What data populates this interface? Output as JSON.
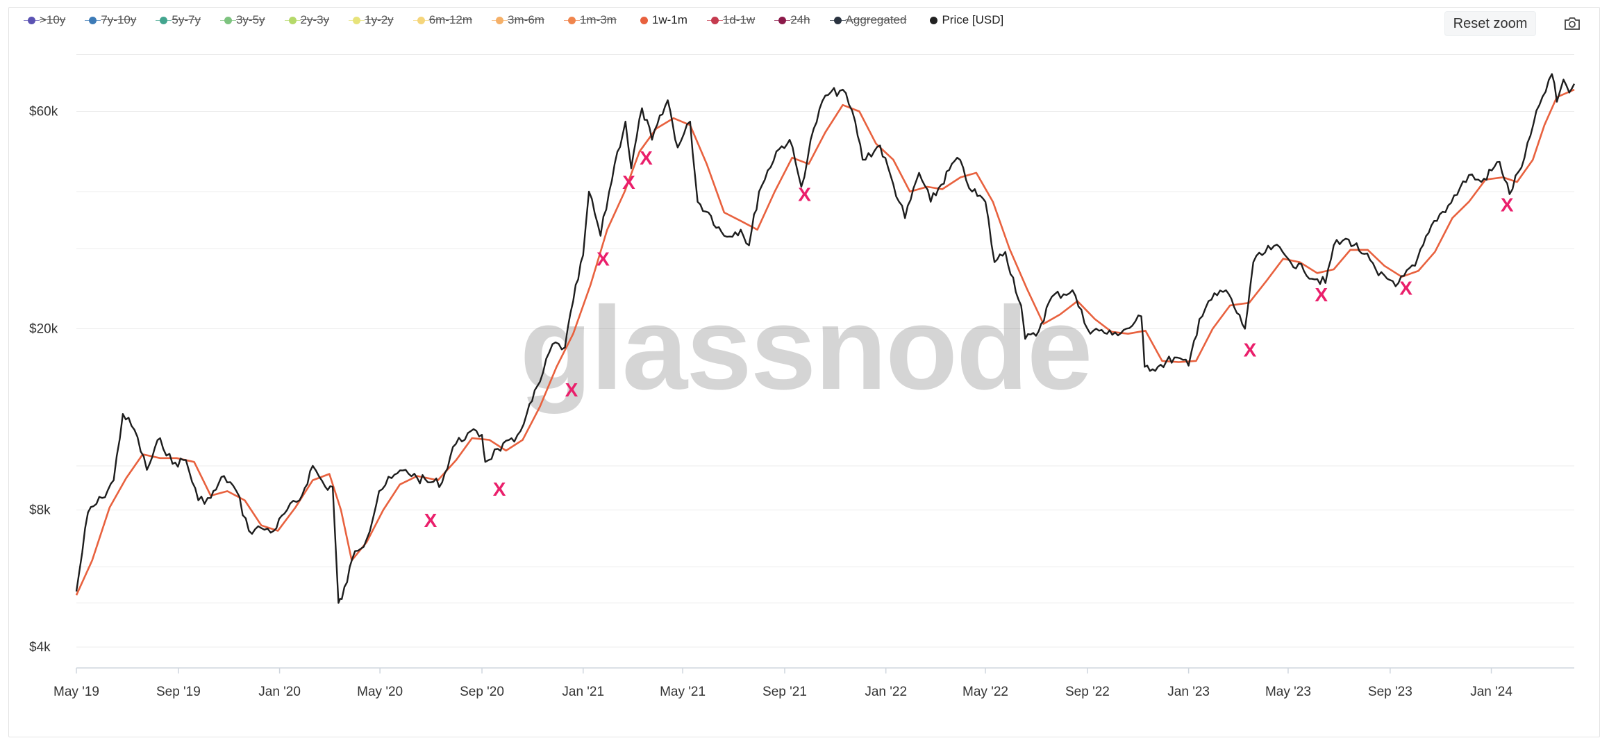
{
  "legend": [
    {
      "label": ">10y",
      "color": "#5b52b3",
      "active": false
    },
    {
      "label": "7y-10y",
      "color": "#3d7bb7",
      "active": false
    },
    {
      "label": "5y-7y",
      "color": "#43a58f",
      "active": false
    },
    {
      "label": "3y-5y",
      "color": "#7dc37f",
      "active": false
    },
    {
      "label": "2y-3y",
      "color": "#b5d96a",
      "active": false
    },
    {
      "label": "1y-2y",
      "color": "#e7e37a",
      "active": false
    },
    {
      "label": "6m-12m",
      "color": "#f5d57b",
      "active": false
    },
    {
      "label": "3m-6m",
      "color": "#f5b068",
      "active": false
    },
    {
      "label": "1m-3m",
      "color": "#f0854d",
      "active": false
    },
    {
      "label": "1w-1m",
      "color": "#e8613e",
      "active": true
    },
    {
      "label": "1d-1w",
      "color": "#c53b4f",
      "active": false
    },
    {
      "label": "24h",
      "color": "#8c1a4a",
      "active": false
    },
    {
      "label": "Aggregated",
      "color": "#2a3340",
      "active": false
    },
    {
      "label": "Price [USD]",
      "color": "#222222",
      "active": true
    }
  ],
  "toolbar": {
    "reset_zoom_label": "Reset zoom",
    "camera_icon": "camera-icon"
  },
  "watermark": "glassnode",
  "colors": {
    "price": "#1d1d1d",
    "band": "#e8613e",
    "marker": "#ea1f6b",
    "grid": "#ececec"
  },
  "chart_data": {
    "type": "line",
    "yscale": "log",
    "ylim": [
      3600,
      90000
    ],
    "xlim": [
      "2019-05-01",
      "2024-04-10"
    ],
    "y_ticks": [
      {
        "value": 4000,
        "label": "$4k"
      },
      {
        "value": 8000,
        "label": "$8k"
      },
      {
        "value": 20000,
        "label": "$20k"
      },
      {
        "value": 60000,
        "label": "$60k"
      }
    ],
    "x_ticks": [
      {
        "date": "2019-05-01",
        "label": "May '19"
      },
      {
        "date": "2019-09-01",
        "label": "Sep '19"
      },
      {
        "date": "2020-01-01",
        "label": "Jan '20"
      },
      {
        "date": "2020-05-01",
        "label": "May '20"
      },
      {
        "date": "2020-09-01",
        "label": "Sep '20"
      },
      {
        "date": "2021-01-01",
        "label": "Jan '21"
      },
      {
        "date": "2021-05-01",
        "label": "May '21"
      },
      {
        "date": "2021-09-01",
        "label": "Sep '21"
      },
      {
        "date": "2022-01-01",
        "label": "Jan '22"
      },
      {
        "date": "2022-05-01",
        "label": "May '22"
      },
      {
        "date": "2022-09-01",
        "label": "Sep '22"
      },
      {
        "date": "2023-01-01",
        "label": "Jan '23"
      },
      {
        "date": "2023-05-01",
        "label": "May '23"
      },
      {
        "date": "2023-09-01",
        "label": "Sep '23"
      },
      {
        "date": "2024-01-01",
        "label": "Jan '24"
      }
    ],
    "grid": true,
    "legend_position": "top-left",
    "series": [
      {
        "name": "Price [USD]",
        "color": "#1d1d1d",
        "points": [
          [
            "2019-05-01",
            5300
          ],
          [
            "2019-05-15",
            7900
          ],
          [
            "2019-06-01",
            8500
          ],
          [
            "2019-06-15",
            9300
          ],
          [
            "2019-06-26",
            13000
          ],
          [
            "2019-07-10",
            12000
          ],
          [
            "2019-07-25",
            9800
          ],
          [
            "2019-08-10",
            11500
          ],
          [
            "2019-08-25",
            10100
          ],
          [
            "2019-09-10",
            10300
          ],
          [
            "2019-09-25",
            8400
          ],
          [
            "2019-10-10",
            8500
          ],
          [
            "2019-10-26",
            9500
          ],
          [
            "2019-11-10",
            8800
          ],
          [
            "2019-11-25",
            7200
          ],
          [
            "2019-12-10",
            7300
          ],
          [
            "2019-12-25",
            7200
          ],
          [
            "2020-01-10",
            8000
          ],
          [
            "2020-01-25",
            8400
          ],
          [
            "2020-02-10",
            10000
          ],
          [
            "2020-02-25",
            9000
          ],
          [
            "2020-03-05",
            9000
          ],
          [
            "2020-03-12",
            5000
          ],
          [
            "2020-03-16",
            5100
          ],
          [
            "2020-04-01",
            6500
          ],
          [
            "2020-04-15",
            6900
          ],
          [
            "2020-04-30",
            8800
          ],
          [
            "2020-05-15",
            9400
          ],
          [
            "2020-06-01",
            9800
          ],
          [
            "2020-06-15",
            9400
          ],
          [
            "2020-07-01",
            9200
          ],
          [
            "2020-07-15",
            9200
          ],
          [
            "2020-07-28",
            11000
          ],
          [
            "2020-08-15",
            11800
          ],
          [
            "2020-09-01",
            11700
          ],
          [
            "2020-09-05",
            10200
          ],
          [
            "2020-09-20",
            10900
          ],
          [
            "2020-10-10",
            11300
          ],
          [
            "2020-10-25",
            13000
          ],
          [
            "2020-11-10",
            15300
          ],
          [
            "2020-11-25",
            18500
          ],
          [
            "2020-12-10",
            18200
          ],
          [
            "2020-12-20",
            23000
          ],
          [
            "2021-01-01",
            29000
          ],
          [
            "2021-01-08",
            40000
          ],
          [
            "2021-01-22",
            32000
          ],
          [
            "2021-02-08",
            46000
          ],
          [
            "2021-02-21",
            57000
          ],
          [
            "2021-02-28",
            45000
          ],
          [
            "2021-03-13",
            61000
          ],
          [
            "2021-03-25",
            52000
          ],
          [
            "2021-04-13",
            63500
          ],
          [
            "2021-04-25",
            50000
          ],
          [
            "2021-05-10",
            57000
          ],
          [
            "2021-05-19",
            38000
          ],
          [
            "2021-06-01",
            36000
          ],
          [
            "2021-06-20",
            32000
          ],
          [
            "2021-07-10",
            33000
          ],
          [
            "2021-07-20",
            30500
          ],
          [
            "2021-08-01",
            40000
          ],
          [
            "2021-08-22",
            49000
          ],
          [
            "2021-09-07",
            52000
          ],
          [
            "2021-09-21",
            41000
          ],
          [
            "2021-10-06",
            55000
          ],
          [
            "2021-10-20",
            65000
          ],
          [
            "2021-11-10",
            67000
          ],
          [
            "2021-11-25",
            57000
          ],
          [
            "2021-12-04",
            47000
          ],
          [
            "2021-12-25",
            50500
          ],
          [
            "2022-01-10",
            41500
          ],
          [
            "2022-01-24",
            35000
          ],
          [
            "2022-02-10",
            44000
          ],
          [
            "2022-02-24",
            38000
          ],
          [
            "2022-03-28",
            47500
          ],
          [
            "2022-04-15",
            40000
          ],
          [
            "2022-05-01",
            38000
          ],
          [
            "2022-05-12",
            28000
          ],
          [
            "2022-05-25",
            29500
          ],
          [
            "2022-06-13",
            22500
          ],
          [
            "2022-06-18",
            19000
          ],
          [
            "2022-07-01",
            19300
          ],
          [
            "2022-07-20",
            23500
          ],
          [
            "2022-08-14",
            24300
          ],
          [
            "2022-09-01",
            20000
          ],
          [
            "2022-09-15",
            19800
          ],
          [
            "2022-10-01",
            19400
          ],
          [
            "2022-10-25",
            20300
          ],
          [
            "2022-11-05",
            21300
          ],
          [
            "2022-11-09",
            16500
          ],
          [
            "2022-11-25",
            16500
          ],
          [
            "2022-12-15",
            17300
          ],
          [
            "2023-01-01",
            16600
          ],
          [
            "2023-01-14",
            21000
          ],
          [
            "2023-01-25",
            23000
          ],
          [
            "2023-02-15",
            24300
          ],
          [
            "2023-03-10",
            20000
          ],
          [
            "2023-03-20",
            28000
          ],
          [
            "2023-04-14",
            30400
          ],
          [
            "2023-05-01",
            28500
          ],
          [
            "2023-05-20",
            26800
          ],
          [
            "2023-06-15",
            25200
          ],
          [
            "2023-06-25",
            30500
          ],
          [
            "2023-07-13",
            31400
          ],
          [
            "2023-08-01",
            29200
          ],
          [
            "2023-08-18",
            26200
          ],
          [
            "2023-09-11",
            25200
          ],
          [
            "2023-10-01",
            27500
          ],
          [
            "2023-10-24",
            34500
          ],
          [
            "2023-11-10",
            37300
          ],
          [
            "2023-12-05",
            43500
          ],
          [
            "2023-12-20",
            42000
          ],
          [
            "2024-01-11",
            46500
          ],
          [
            "2024-01-23",
            39500
          ],
          [
            "2024-02-10",
            47500
          ],
          [
            "2024-02-28",
            62000
          ],
          [
            "2024-03-14",
            72500
          ],
          [
            "2024-03-20",
            63000
          ],
          [
            "2024-03-28",
            70500
          ],
          [
            "2024-04-04",
            66000
          ],
          [
            "2024-04-10",
            69000
          ]
        ]
      },
      {
        "name": "1w-1m",
        "color": "#e8613e",
        "points": [
          [
            "2019-05-01",
            5200
          ],
          [
            "2019-05-20",
            6200
          ],
          [
            "2019-06-10",
            8100
          ],
          [
            "2019-06-30",
            9400
          ],
          [
            "2019-07-20",
            10600
          ],
          [
            "2019-08-10",
            10400
          ],
          [
            "2019-08-30",
            10400
          ],
          [
            "2019-09-20",
            10200
          ],
          [
            "2019-10-10",
            8600
          ],
          [
            "2019-10-30",
            8800
          ],
          [
            "2019-11-20",
            8400
          ],
          [
            "2019-12-10",
            7400
          ],
          [
            "2019-12-30",
            7200
          ],
          [
            "2020-01-20",
            8100
          ],
          [
            "2020-02-10",
            9300
          ],
          [
            "2020-03-01",
            9600
          ],
          [
            "2020-03-15",
            8000
          ],
          [
            "2020-03-28",
            6200
          ],
          [
            "2020-04-15",
            6800
          ],
          [
            "2020-05-05",
            8000
          ],
          [
            "2020-05-25",
            9100
          ],
          [
            "2020-06-15",
            9500
          ],
          [
            "2020-07-10",
            9300
          ],
          [
            "2020-08-01",
            10300
          ],
          [
            "2020-08-20",
            11500
          ],
          [
            "2020-09-10",
            11400
          ],
          [
            "2020-09-30",
            10800
          ],
          [
            "2020-10-20",
            11400
          ],
          [
            "2020-11-10",
            13500
          ],
          [
            "2020-11-30",
            16500
          ],
          [
            "2020-12-20",
            19500
          ],
          [
            "2021-01-10",
            25000
          ],
          [
            "2021-01-30",
            33000
          ],
          [
            "2021-02-20",
            40000
          ],
          [
            "2021-03-10",
            49000
          ],
          [
            "2021-03-30",
            55000
          ],
          [
            "2021-04-20",
            58000
          ],
          [
            "2021-05-10",
            56000
          ],
          [
            "2021-05-30",
            46000
          ],
          [
            "2021-06-20",
            36000
          ],
          [
            "2021-07-10",
            34500
          ],
          [
            "2021-07-30",
            33000
          ],
          [
            "2021-08-20",
            40000
          ],
          [
            "2021-09-10",
            47500
          ],
          [
            "2021-09-30",
            46000
          ],
          [
            "2021-10-20",
            54000
          ],
          [
            "2021-11-10",
            62000
          ],
          [
            "2021-11-30",
            60000
          ],
          [
            "2021-12-20",
            51000
          ],
          [
            "2022-01-10",
            47000
          ],
          [
            "2022-01-30",
            40000
          ],
          [
            "2022-02-20",
            41000
          ],
          [
            "2022-03-10",
            40500
          ],
          [
            "2022-04-01",
            43000
          ],
          [
            "2022-04-20",
            44000
          ],
          [
            "2022-05-10",
            38000
          ],
          [
            "2022-05-30",
            30000
          ],
          [
            "2022-06-20",
            24500
          ],
          [
            "2022-07-10",
            20500
          ],
          [
            "2022-07-30",
            21500
          ],
          [
            "2022-08-20",
            23000
          ],
          [
            "2022-09-10",
            21000
          ],
          [
            "2022-09-30",
            19700
          ],
          [
            "2022-10-20",
            19500
          ],
          [
            "2022-11-10",
            19800
          ],
          [
            "2022-11-30",
            17000
          ],
          [
            "2022-12-20",
            16900
          ],
          [
            "2023-01-10",
            17000
          ],
          [
            "2023-01-30",
            20000
          ],
          [
            "2023-02-20",
            22500
          ],
          [
            "2023-03-15",
            22800
          ],
          [
            "2023-04-05",
            25500
          ],
          [
            "2023-04-25",
            28500
          ],
          [
            "2023-05-15",
            28000
          ],
          [
            "2023-06-05",
            26500
          ],
          [
            "2023-06-25",
            27000
          ],
          [
            "2023-07-15",
            29800
          ],
          [
            "2023-08-05",
            29800
          ],
          [
            "2023-08-25",
            27500
          ],
          [
            "2023-09-15",
            26000
          ],
          [
            "2023-10-05",
            26800
          ],
          [
            "2023-10-25",
            29500
          ],
          [
            "2023-11-15",
            35000
          ],
          [
            "2023-12-05",
            38000
          ],
          [
            "2023-12-25",
            42500
          ],
          [
            "2024-01-15",
            43000
          ],
          [
            "2024-02-01",
            42000
          ],
          [
            "2024-02-20",
            47000
          ],
          [
            "2024-03-05",
            56000
          ],
          [
            "2024-03-20",
            64500
          ],
          [
            "2024-04-10",
            67000
          ]
        ]
      }
    ],
    "markers": [
      {
        "date": "2020-07-01",
        "value": 7600,
        "label": "X"
      },
      {
        "date": "2020-09-22",
        "value": 8900,
        "label": "X"
      },
      {
        "date": "2020-12-18",
        "value": 14700,
        "label": "X"
      },
      {
        "date": "2021-01-25",
        "value": 28500,
        "label": "X"
      },
      {
        "date": "2021-02-25",
        "value": 42000,
        "label": "X"
      },
      {
        "date": "2021-03-18",
        "value": 47500,
        "label": "X"
      },
      {
        "date": "2021-09-25",
        "value": 39500,
        "label": "X"
      },
      {
        "date": "2023-03-16",
        "value": 18000,
        "label": "X"
      },
      {
        "date": "2023-06-10",
        "value": 23800,
        "label": "X"
      },
      {
        "date": "2023-09-20",
        "value": 24600,
        "label": "X"
      },
      {
        "date": "2024-01-20",
        "value": 37500,
        "label": "X"
      }
    ]
  }
}
